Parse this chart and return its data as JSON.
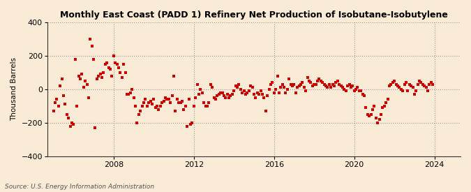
{
  "title": "Monthly East Coast (PADD 1) Refinery Net Production of Isobutane-Isobutylene",
  "ylabel": "Thousand Barrels",
  "source": "Source: U.S. Energy Information Administration",
  "bg_color": "#faebd7",
  "marker_color": "#cc0000",
  "ylim": [
    -400,
    400
  ],
  "xlim_start": 2004.7,
  "xlim_end": 2025.3,
  "xticks": [
    2008,
    2012,
    2016,
    2020,
    2024
  ],
  "yticks": [
    -400,
    -200,
    0,
    200,
    400
  ],
  "dates": [
    2005.0,
    2005.083,
    2005.167,
    2005.25,
    2005.333,
    2005.417,
    2005.5,
    2005.583,
    2005.667,
    2005.75,
    2005.833,
    2005.917,
    2006.0,
    2006.083,
    2006.167,
    2006.25,
    2006.333,
    2006.417,
    2006.5,
    2006.583,
    2006.667,
    2006.75,
    2006.833,
    2006.917,
    2007.0,
    2007.083,
    2007.167,
    2007.25,
    2007.333,
    2007.417,
    2007.5,
    2007.583,
    2007.667,
    2007.75,
    2007.833,
    2007.917,
    2008.0,
    2008.083,
    2008.167,
    2008.25,
    2008.333,
    2008.417,
    2008.5,
    2008.583,
    2008.667,
    2008.75,
    2008.833,
    2008.917,
    2009.0,
    2009.083,
    2009.167,
    2009.25,
    2009.333,
    2009.417,
    2009.5,
    2009.583,
    2009.667,
    2009.75,
    2009.833,
    2009.917,
    2010.0,
    2010.083,
    2010.167,
    2010.25,
    2010.333,
    2010.417,
    2010.5,
    2010.583,
    2010.667,
    2010.75,
    2010.833,
    2010.917,
    2011.0,
    2011.083,
    2011.167,
    2011.25,
    2011.333,
    2011.417,
    2011.5,
    2011.583,
    2011.667,
    2011.75,
    2011.833,
    2011.917,
    2012.0,
    2012.083,
    2012.167,
    2012.25,
    2012.333,
    2012.417,
    2012.5,
    2012.583,
    2012.667,
    2012.75,
    2012.833,
    2012.917,
    2013.0,
    2013.083,
    2013.167,
    2013.25,
    2013.333,
    2013.417,
    2013.5,
    2013.583,
    2013.667,
    2013.75,
    2013.833,
    2013.917,
    2014.0,
    2014.083,
    2014.167,
    2014.25,
    2014.333,
    2014.417,
    2014.5,
    2014.583,
    2014.667,
    2014.75,
    2014.833,
    2014.917,
    2015.0,
    2015.083,
    2015.167,
    2015.25,
    2015.333,
    2015.417,
    2015.5,
    2015.583,
    2015.667,
    2015.75,
    2015.833,
    2015.917,
    2016.0,
    2016.083,
    2016.167,
    2016.25,
    2016.333,
    2016.417,
    2016.5,
    2016.583,
    2016.667,
    2016.75,
    2016.833,
    2016.917,
    2017.0,
    2017.083,
    2017.167,
    2017.25,
    2017.333,
    2017.417,
    2017.5,
    2017.583,
    2017.667,
    2017.75,
    2017.833,
    2017.917,
    2018.0,
    2018.083,
    2018.167,
    2018.25,
    2018.333,
    2018.417,
    2018.5,
    2018.583,
    2018.667,
    2018.75,
    2018.833,
    2018.917,
    2019.0,
    2019.083,
    2019.167,
    2019.25,
    2019.333,
    2019.417,
    2019.5,
    2019.583,
    2019.667,
    2019.75,
    2019.833,
    2019.917,
    2020.0,
    2020.083,
    2020.167,
    2020.25,
    2020.333,
    2020.417,
    2020.5,
    2020.583,
    2020.667,
    2020.75,
    2020.833,
    2020.917,
    2021.0,
    2021.083,
    2021.167,
    2021.25,
    2021.333,
    2021.417,
    2021.5,
    2021.583,
    2021.667,
    2021.75,
    2021.833,
    2021.917,
    2022.0,
    2022.083,
    2022.167,
    2022.25,
    2022.333,
    2022.417,
    2022.5,
    2022.583,
    2022.667,
    2022.75,
    2022.833,
    2022.917,
    2023.0,
    2023.083,
    2023.167,
    2023.25,
    2023.333,
    2023.417,
    2023.5,
    2023.583,
    2023.667,
    2023.75,
    2023.833,
    2023.917
  ],
  "values": [
    -130,
    -80,
    -60,
    -100,
    20,
    60,
    -40,
    -90,
    -150,
    -170,
    -220,
    -200,
    -210,
    180,
    -100,
    80,
    60,
    90,
    10,
    50,
    30,
    -50,
    300,
    260,
    180,
    -230,
    60,
    80,
    90,
    70,
    100,
    150,
    160,
    130,
    120,
    80,
    200,
    160,
    150,
    130,
    100,
    70,
    150,
    100,
    -30,
    -30,
    -20,
    0,
    -50,
    -100,
    -200,
    -150,
    -130,
    -100,
    -80,
    -60,
    -100,
    -80,
    -70,
    -90,
    -60,
    -110,
    -100,
    -120,
    -100,
    -80,
    -70,
    -50,
    -60,
    -60,
    -80,
    -40,
    80,
    -130,
    -60,
    -80,
    -80,
    -70,
    -120,
    -100,
    -220,
    -60,
    -210,
    -200,
    -100,
    -50,
    30,
    -30,
    0,
    -20,
    -80,
    -100,
    -100,
    -80,
    30,
    10,
    -50,
    -60,
    -40,
    -30,
    -20,
    -20,
    -40,
    -50,
    -30,
    -50,
    -40,
    -30,
    -10,
    20,
    10,
    30,
    0,
    -20,
    -10,
    -30,
    -20,
    -10,
    20,
    10,
    -30,
    -50,
    -20,
    -30,
    -10,
    -30,
    -50,
    -130,
    -40,
    0,
    30,
    40,
    -20,
    0,
    80,
    -20,
    10,
    30,
    10,
    -20,
    0,
    60,
    30,
    20,
    30,
    -20,
    10,
    20,
    30,
    40,
    10,
    -10,
    70,
    50,
    40,
    20,
    30,
    30,
    50,
    60,
    50,
    40,
    30,
    20,
    10,
    30,
    10,
    30,
    20,
    40,
    50,
    30,
    20,
    10,
    0,
    -10,
    20,
    30,
    10,
    20,
    -10,
    0,
    10,
    -10,
    -10,
    -30,
    -40,
    -110,
    -150,
    -160,
    -150,
    -120,
    -100,
    -170,
    -200,
    -180,
    -150,
    -110,
    -100,
    -80,
    -60,
    20,
    30,
    40,
    50,
    30,
    20,
    10,
    0,
    -10,
    30,
    40,
    -10,
    30,
    20,
    10,
    -30,
    -10,
    30,
    50,
    40,
    30,
    20,
    10,
    -10,
    30,
    40,
    30
  ]
}
